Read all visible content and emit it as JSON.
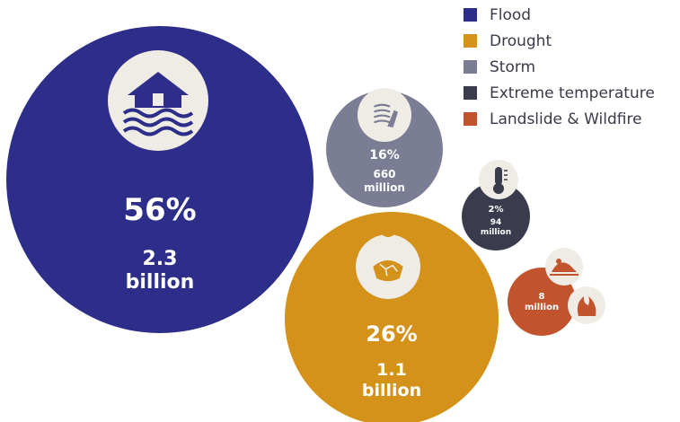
{
  "chart_data": {
    "type": "bubble",
    "series": [
      {
        "name": "Flood",
        "share_pct": 56,
        "pct_label": "56%",
        "people_label": [
          "2.3",
          "billion"
        ],
        "people_millions": 2300,
        "color": "#2d2d8a",
        "icon": "flooded-house-icon"
      },
      {
        "name": "Drought",
        "share_pct": 26,
        "pct_label": "26%",
        "people_label": [
          "1.1",
          "billion"
        ],
        "people_millions": 1100,
        "color": "#d4921a",
        "icon": "cracked-earth-sun-icon"
      },
      {
        "name": "Storm",
        "share_pct": 16,
        "pct_label": "16%",
        "people_label": [
          "660",
          "million"
        ],
        "people_millions": 660,
        "color": "#7a7d93",
        "icon": "wind-storm-icon"
      },
      {
        "name": "Extreme temperature",
        "share_pct": 2,
        "pct_label": "2%",
        "people_label": [
          "94",
          "million"
        ],
        "people_millions": 94,
        "color": "#3a3b4c",
        "icon": "thermometer-icon"
      },
      {
        "name": "Landslide & Wildfire",
        "share_pct": null,
        "pct_label": "",
        "people_label": [
          "8",
          "million"
        ],
        "people_millions": 8,
        "color": "#c2542d",
        "icon": "landslide-and-fire-icon"
      }
    ]
  },
  "legend": {
    "position": "top-right",
    "items": [
      {
        "label": "Flood",
        "color": "#2d2d8a"
      },
      {
        "label": "Drought",
        "color": "#d4921a"
      },
      {
        "label": "Storm",
        "color": "#7a7d93"
      },
      {
        "label": "Extreme temperature",
        "color": "#3a3b4c"
      },
      {
        "label": "Landslide & Wildfire",
        "color": "#c2542d"
      }
    ]
  },
  "icon_badge_color": "#efece6"
}
